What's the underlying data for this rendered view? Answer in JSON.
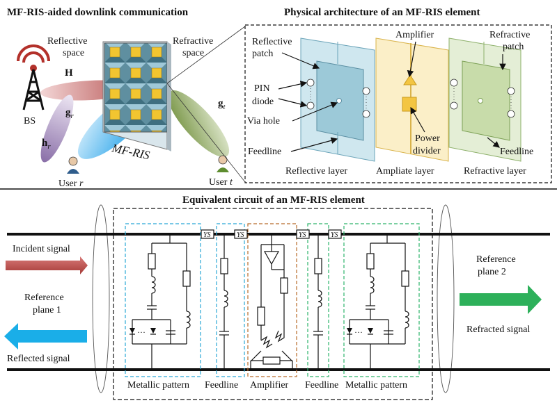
{
  "left_panel": {
    "title": "MF-RIS-aided downlink communication",
    "reflective_space": [
      "Reflective",
      "space"
    ],
    "refractive_space": [
      "Refractive",
      "space"
    ],
    "bs_label": "BS",
    "channel_H": "H",
    "channel_g": "g",
    "channel_h": "h",
    "sub_r": "r",
    "sub_t": "t",
    "ris_label": "MF-RIS",
    "user_r_prefix": "User",
    "user_r_symbol": "r",
    "user_t_prefix": "User",
    "user_t_symbol": "t"
  },
  "right_panel": {
    "title": "Physical architecture of an MF-RIS element",
    "reflective_patch": [
      "Reflective",
      "patch"
    ],
    "pin_diode": [
      "PIN",
      "diode"
    ],
    "via_hole": "Via hole",
    "feedline": "Feedline",
    "amplifier": "Amplifier",
    "power_divider": [
      "Power",
      "divider"
    ],
    "refractive_patch": [
      "Refractive",
      "patch"
    ],
    "reflective_layer": "Reflective layer",
    "ampliate_layer": "Ampliate layer",
    "refractive_layer": "Refractive layer"
  },
  "circuit": {
    "title": "Equivalent circuit of an MF-RIS element",
    "ys_label": "YS",
    "incident_signal": "Incident signal",
    "reference_plane_1": [
      "Reference",
      "plane 1"
    ],
    "reflected_signal": "Reflected signal",
    "reference_plane_2": [
      "Reference",
      "plane 2"
    ],
    "refracted_signal": "Refracted signal",
    "metallic_pattern": "Metallic pattern",
    "feedline": "Feedline",
    "amplifier": "Amplifier"
  },
  "colors": {
    "incident_arrow": "#b5504f",
    "reflected_arrow": "#1aaee8",
    "refracted_arrow": "#2db05a",
    "reflective_box": "#29a8d6",
    "amplifier_box": "#b86b2a",
    "refractive_box": "#2db36b"
  }
}
